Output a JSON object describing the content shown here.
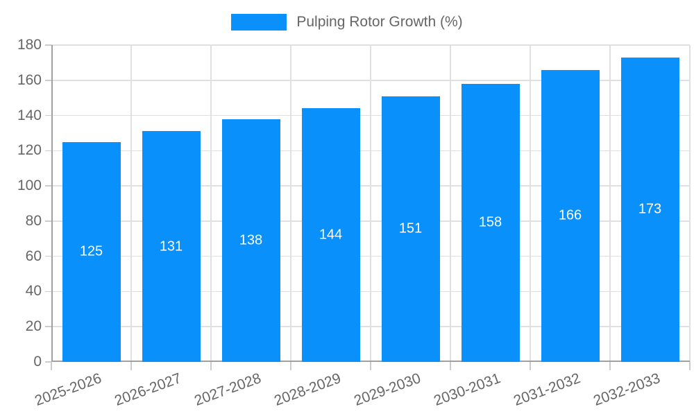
{
  "chart_data": {
    "type": "bar",
    "title": "Pulping Rotor Growth (%)",
    "categories": [
      "2025-2026",
      "2026-2027",
      "2027-2028",
      "2028-2029",
      "2029-2030",
      "2030-2031",
      "2031-2032",
      "2032-2033"
    ],
    "values": [
      125,
      131,
      138,
      144,
      151,
      158,
      166,
      173
    ],
    "xlabel": "",
    "ylabel": "",
    "ylim": [
      0,
      180
    ],
    "ytick_step": 20,
    "ytick_labels": [
      "0",
      "20",
      "40",
      "60",
      "80",
      "100",
      "120",
      "140",
      "160",
      "180"
    ],
    "grid": true,
    "legend_position": "top",
    "legend_entries": [
      "Pulping Rotor Growth (%)"
    ],
    "bar_label_position": "inside-center",
    "colors": {
      "bar": "#0990fb",
      "bar_label": "#ffffff",
      "axis_text": "#666666",
      "gridline": "#e0e0e0",
      "axis_line": "#a0a0a0",
      "tick": "#cccccc",
      "background": "#ffffff"
    }
  }
}
